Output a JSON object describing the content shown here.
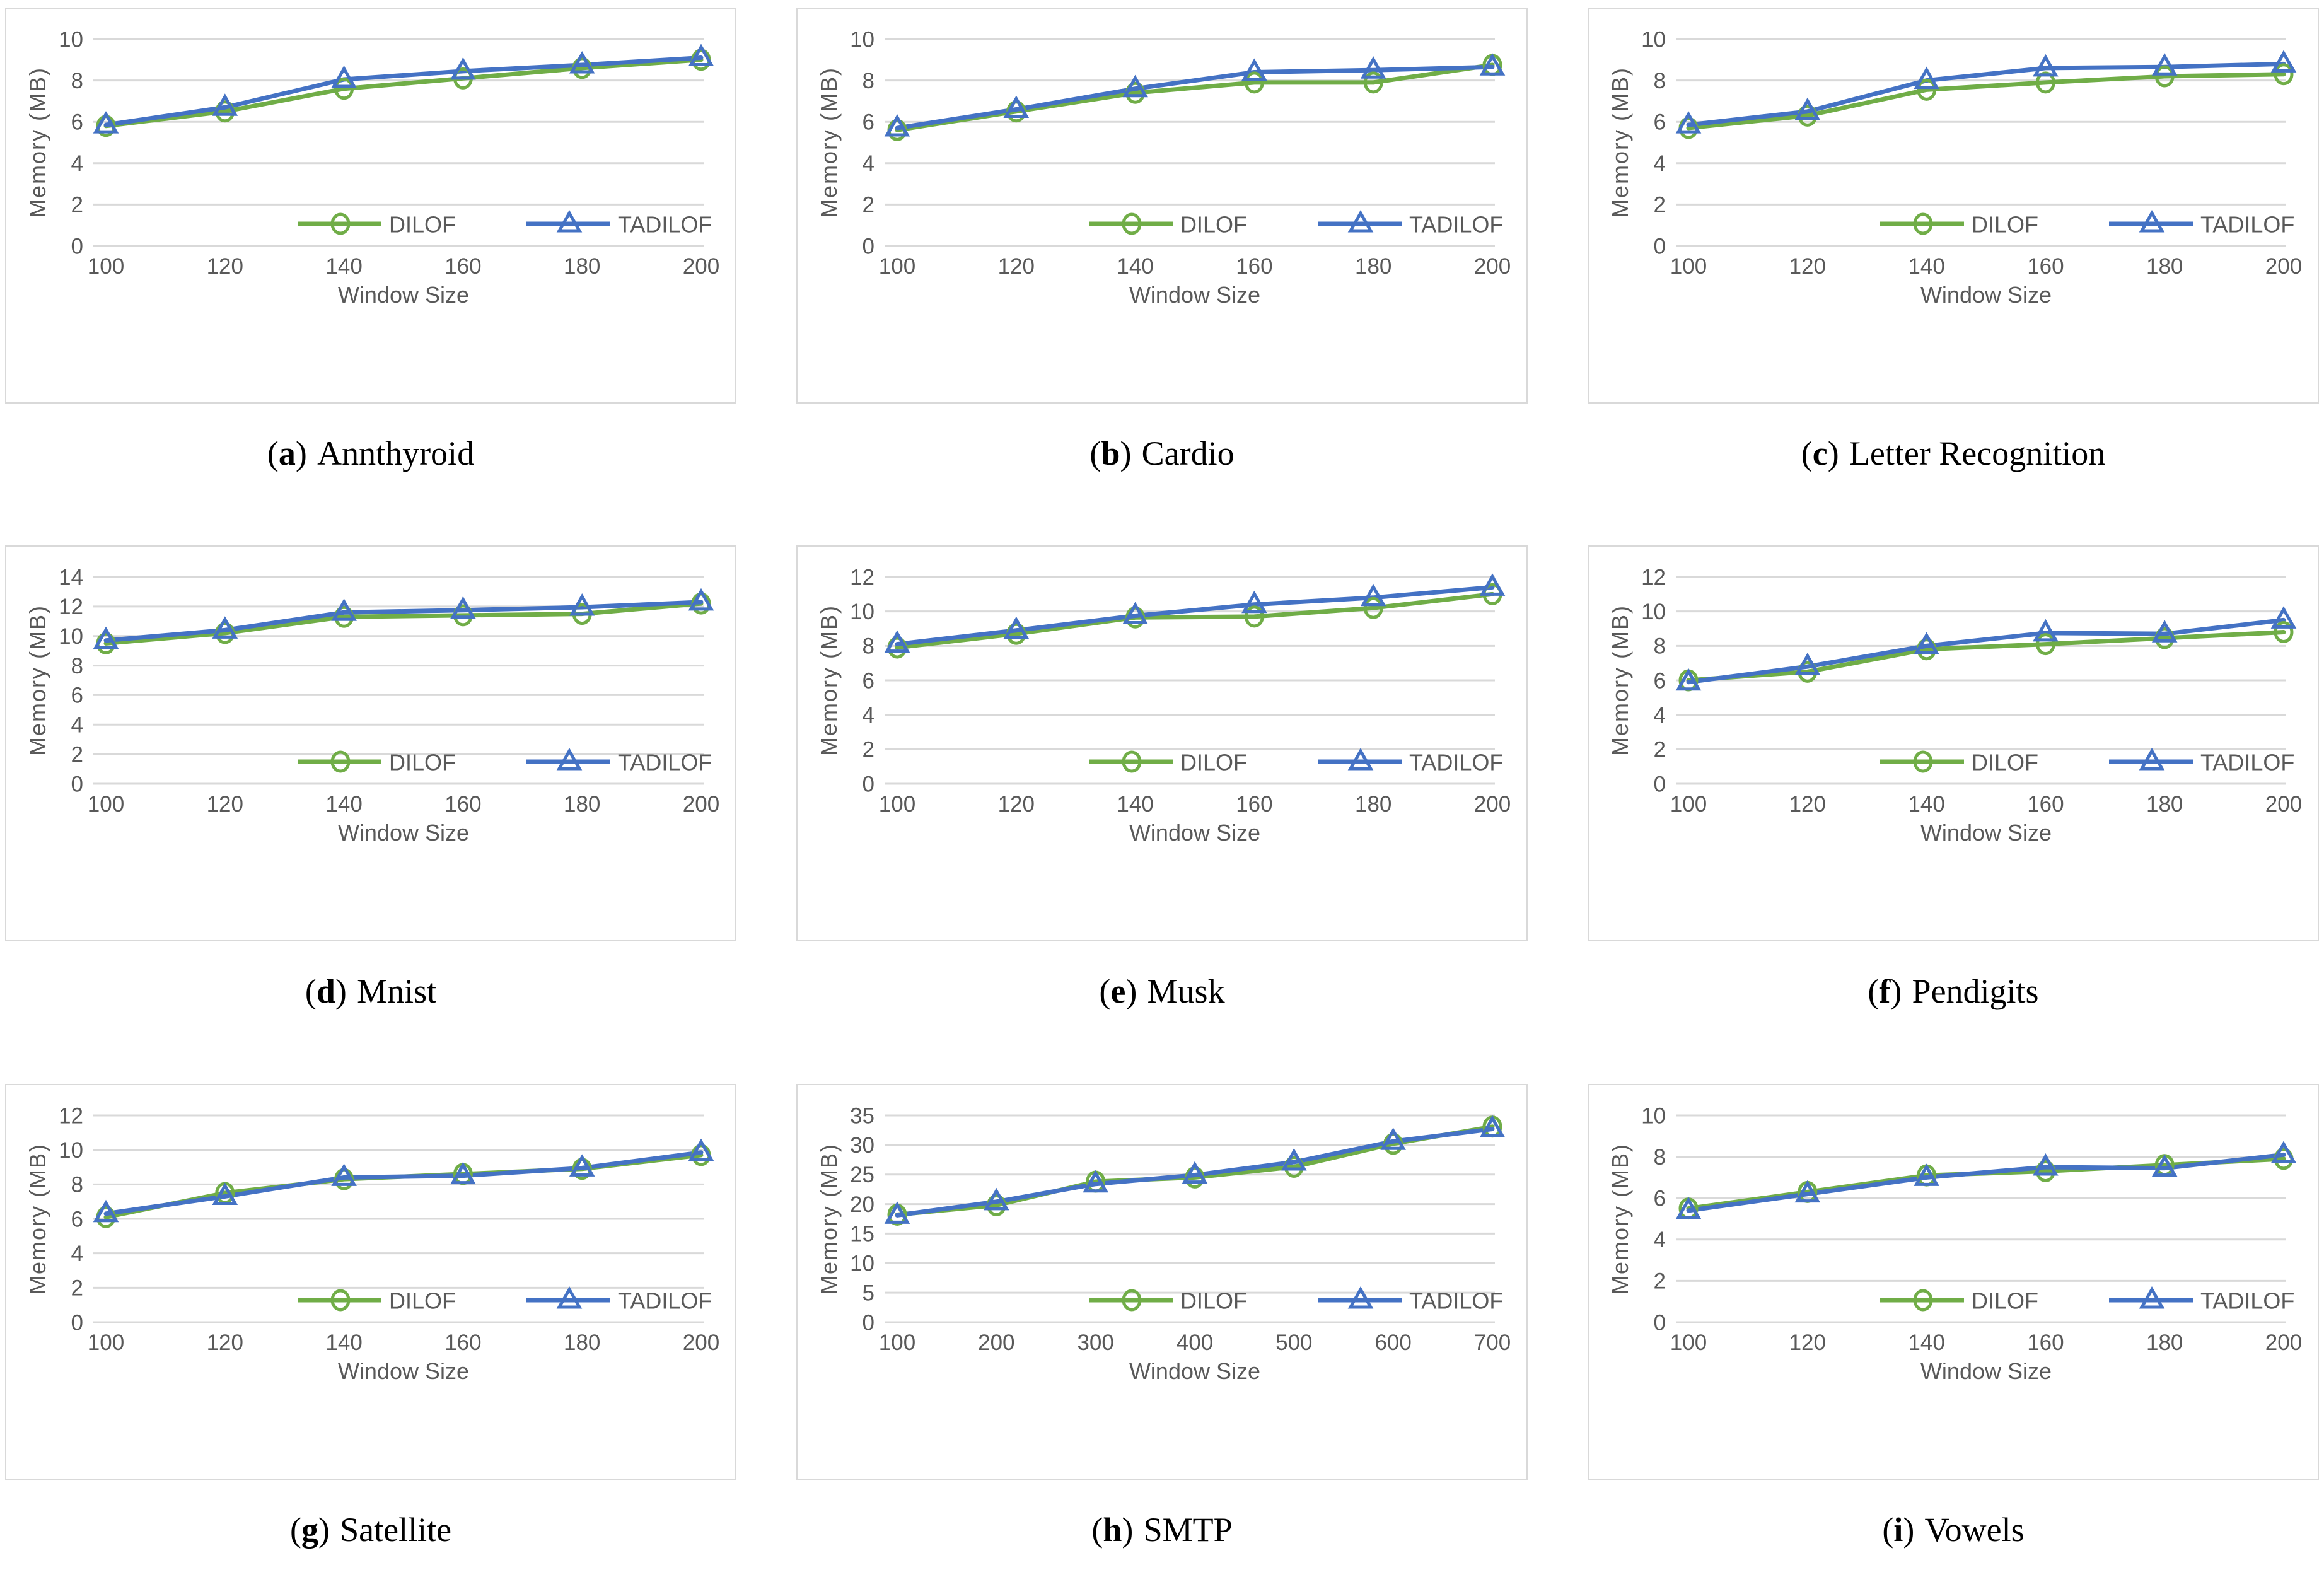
{
  "caption_paren_open": "(",
  "caption_paren_close": ")",
  "style": {
    "grid_color": "#D9D9D9",
    "tick_color": "#595959",
    "panel_border_color": "#D9D9D9",
    "background": "#FFFFFF",
    "caption_color": "#000000",
    "dilof_color": "#70AD47",
    "tadilof_color": "#4472C4"
  },
  "chart_data": [
    {
      "type": "line",
      "caption_letter": "a",
      "caption_name": "Annthyroid",
      "xlabel": "Window Size",
      "ylabel": "Memory (MB)",
      "categories": [
        100,
        120,
        140,
        160,
        180,
        200
      ],
      "ylim": [
        0,
        10
      ],
      "ytick_step": 2,
      "grid": true,
      "legend_position": "bottom-inside",
      "series": [
        {
          "name": "DILOF",
          "marker": "circle",
          "color": "#70AD47",
          "values": [
            5.8,
            6.5,
            7.6,
            8.1,
            8.6,
            9.0
          ]
        },
        {
          "name": "TADILOF",
          "marker": "triangle",
          "color": "#4472C4",
          "values": [
            5.85,
            6.7,
            8.05,
            8.45,
            8.75,
            9.1
          ]
        }
      ]
    },
    {
      "type": "line",
      "caption_letter": "b",
      "caption_name": "Cardio",
      "xlabel": "Window Size",
      "ylabel": "Memory (MB)",
      "categories": [
        100,
        120,
        140,
        160,
        180,
        200
      ],
      "ylim": [
        0,
        10
      ],
      "ytick_step": 2,
      "grid": true,
      "legend_position": "bottom-inside",
      "series": [
        {
          "name": "DILOF",
          "marker": "circle",
          "color": "#70AD47",
          "values": [
            5.6,
            6.5,
            7.4,
            7.9,
            7.9,
            8.75
          ]
        },
        {
          "name": "TADILOF",
          "marker": "triangle",
          "color": "#4472C4",
          "values": [
            5.7,
            6.6,
            7.6,
            8.4,
            8.5,
            8.65
          ]
        }
      ]
    },
    {
      "type": "line",
      "caption_letter": "c",
      "caption_name": "Letter Recognition",
      "xlabel": "Window Size",
      "ylabel": "Memory (MB)",
      "categories": [
        100,
        120,
        140,
        160,
        180,
        200
      ],
      "ylim": [
        0,
        10
      ],
      "ytick_step": 2,
      "grid": true,
      "legend_position": "bottom-inside",
      "series": [
        {
          "name": "DILOF",
          "marker": "circle",
          "color": "#70AD47",
          "values": [
            5.7,
            6.3,
            7.55,
            7.9,
            8.2,
            8.3
          ]
        },
        {
          "name": "TADILOF",
          "marker": "triangle",
          "color": "#4472C4",
          "values": [
            5.85,
            6.5,
            8.0,
            8.6,
            8.65,
            8.8
          ]
        }
      ]
    },
    {
      "type": "line",
      "caption_letter": "d",
      "caption_name": "Mnist",
      "xlabel": "Window Size",
      "ylabel": "Memory (MB)",
      "categories": [
        100,
        120,
        140,
        160,
        180,
        200
      ],
      "ylim": [
        0,
        14
      ],
      "ytick_step": 2,
      "grid": true,
      "legend_position": "bottom-inside",
      "series": [
        {
          "name": "DILOF",
          "marker": "circle",
          "color": "#70AD47",
          "values": [
            9.5,
            10.2,
            11.3,
            11.4,
            11.5,
            12.2
          ]
        },
        {
          "name": "TADILOF",
          "marker": "triangle",
          "color": "#4472C4",
          "values": [
            9.7,
            10.4,
            11.6,
            11.75,
            11.95,
            12.3
          ]
        }
      ]
    },
    {
      "type": "line",
      "caption_letter": "e",
      "caption_name": "Musk",
      "xlabel": "Window Size",
      "ylabel": "Memory (MB)",
      "categories": [
        100,
        120,
        140,
        160,
        180,
        200
      ],
      "ylim": [
        0,
        12
      ],
      "ytick_step": 2,
      "grid": true,
      "legend_position": "bottom-inside",
      "series": [
        {
          "name": "DILOF",
          "marker": "circle",
          "color": "#70AD47",
          "values": [
            7.9,
            8.7,
            9.65,
            9.7,
            10.2,
            11.0
          ]
        },
        {
          "name": "TADILOF",
          "marker": "triangle",
          "color": "#4472C4",
          "values": [
            8.1,
            8.9,
            9.75,
            10.4,
            10.8,
            11.4
          ]
        }
      ]
    },
    {
      "type": "line",
      "caption_letter": "f",
      "caption_name": "Pendigits",
      "xlabel": "Window Size",
      "ylabel": "Memory (MB)",
      "categories": [
        100,
        120,
        140,
        160,
        180,
        200
      ],
      "ylim": [
        0,
        12
      ],
      "ytick_step": 2,
      "grid": true,
      "legend_position": "bottom-inside",
      "series": [
        {
          "name": "DILOF",
          "marker": "circle",
          "color": "#70AD47",
          "values": [
            6.0,
            6.5,
            7.8,
            8.1,
            8.45,
            8.8
          ]
        },
        {
          "name": "TADILOF",
          "marker": "triangle",
          "color": "#4472C4",
          "values": [
            5.9,
            6.8,
            8.0,
            8.75,
            8.7,
            9.5
          ]
        }
      ]
    },
    {
      "type": "line",
      "caption_letter": "g",
      "caption_name": "Satellite",
      "xlabel": "Window Size",
      "ylabel": "Memory (MB)",
      "categories": [
        100,
        120,
        140,
        160,
        180,
        200
      ],
      "ylim": [
        0,
        12
      ],
      "ytick_step": 2,
      "grid": true,
      "legend_position": "bottom-inside",
      "series": [
        {
          "name": "DILOF",
          "marker": "circle",
          "color": "#70AD47",
          "values": [
            6.1,
            7.5,
            8.3,
            8.6,
            8.9,
            9.7
          ]
        },
        {
          "name": "TADILOF",
          "marker": "triangle",
          "color": "#4472C4",
          "values": [
            6.3,
            7.3,
            8.4,
            8.5,
            8.95,
            9.85
          ]
        }
      ]
    },
    {
      "type": "line",
      "caption_letter": "h",
      "caption_name": "SMTP",
      "xlabel": "Window Size",
      "ylabel": "Memory (MB)",
      "categories": [
        100,
        200,
        300,
        400,
        500,
        600,
        700
      ],
      "ylim": [
        0,
        35
      ],
      "ytick_step": 5,
      "grid": true,
      "legend_position": "bottom-inside",
      "series": [
        {
          "name": "DILOF",
          "marker": "circle",
          "color": "#70AD47",
          "values": [
            18.2,
            19.8,
            23.8,
            24.5,
            26.3,
            30.2,
            33.1
          ]
        },
        {
          "name": "TADILOF",
          "marker": "triangle",
          "color": "#4472C4",
          "values": [
            18.1,
            20.4,
            23.4,
            24.9,
            27.1,
            30.6,
            32.7
          ]
        }
      ]
    },
    {
      "type": "line",
      "caption_letter": "i",
      "caption_name": "Vowels",
      "xlabel": "Window Size",
      "ylabel": "Memory (MB)",
      "categories": [
        100,
        120,
        140,
        160,
        180,
        200
      ],
      "ylim": [
        0,
        10
      ],
      "ytick_step": 2,
      "grid": true,
      "legend_position": "bottom-inside",
      "series": [
        {
          "name": "DILOF",
          "marker": "circle",
          "color": "#70AD47",
          "values": [
            5.5,
            6.3,
            7.1,
            7.3,
            7.6,
            7.9
          ]
        },
        {
          "name": "TADILOF",
          "marker": "triangle",
          "color": "#4472C4",
          "values": [
            5.4,
            6.2,
            7.0,
            7.5,
            7.45,
            8.1
          ]
        }
      ]
    }
  ]
}
